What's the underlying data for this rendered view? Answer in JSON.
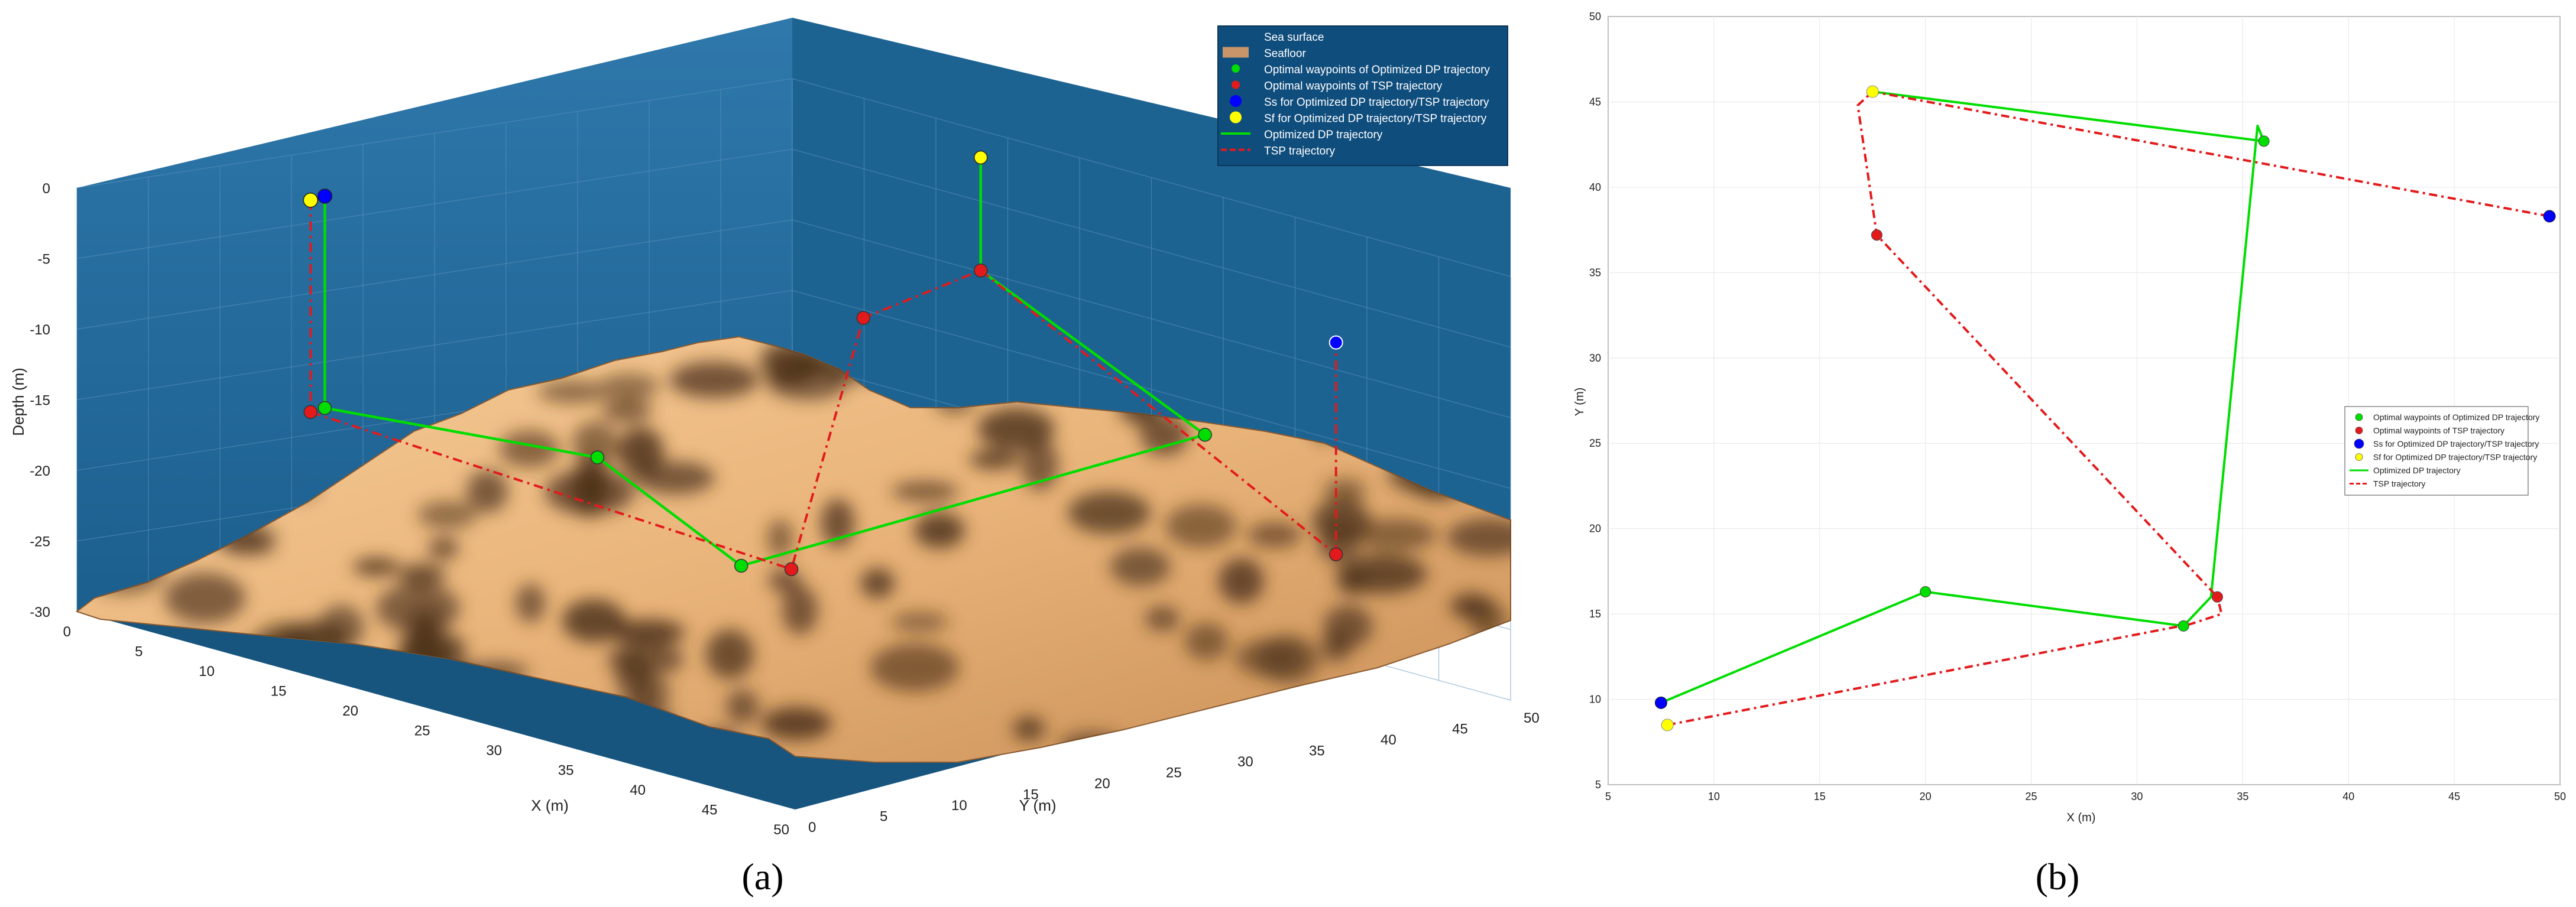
{
  "panel_a": {
    "caption": "(a)",
    "z_ticks": [
      "0",
      "-5",
      "-10",
      "-15",
      "-20",
      "-25",
      "-30"
    ],
    "x_ticks": [
      "0",
      "5",
      "10",
      "15",
      "20",
      "25",
      "30",
      "35",
      "40",
      "45",
      "50"
    ],
    "y_ticks": [
      "0",
      "5",
      "10",
      "15",
      "20",
      "25",
      "30",
      "35",
      "40",
      "45",
      "50"
    ],
    "zlabel": "Depth (m)",
    "xlabel": "X (m)",
    "ylabel": "Y (m)",
    "colors": {
      "water": "#1b5f8e",
      "seafloor_light": "#f2c28c",
      "seafloor_dark": "#5b3d22",
      "legend_bg": "#0f4d7d"
    },
    "legend": [
      {
        "icon": "none",
        "label": "Sea surface"
      },
      {
        "icon": "tan-rect",
        "label": "Seafloor"
      },
      {
        "icon": "green-dot",
        "label": "Optimal waypoints of Optimized DP trajectory"
      },
      {
        "icon": "red-dot",
        "label": "Optimal waypoints of TSP trajectory"
      },
      {
        "icon": "blue-dot",
        "label": "Ss for Optimized DP trajectory/TSP trajectory"
      },
      {
        "icon": "yellow-dot",
        "label": "Sf for Optimized DP trajectory/TSP trajectory"
      },
      {
        "icon": "green-line",
        "label": "Optimized DP trajectory"
      },
      {
        "icon": "red-dashed-line",
        "label": "TSP trajectory"
      }
    ]
  },
  "panel_b": {
    "caption": "(b)",
    "x_ticks": [
      "5",
      "10",
      "15",
      "20",
      "25",
      "30",
      "35",
      "40",
      "45",
      "50"
    ],
    "y_ticks": [
      "5",
      "10",
      "15",
      "20",
      "25",
      "30",
      "35",
      "40",
      "45",
      "50"
    ],
    "xlabel": "X (m)",
    "ylabel": "Y (m)",
    "legend": [
      {
        "icon": "green-dot",
        "label": "Optimal waypoints of Optimized DP trajectory"
      },
      {
        "icon": "red-dot",
        "label": "Optimal waypoints of TSP trajectory"
      },
      {
        "icon": "blue-dot",
        "label": "Ss for Optimized DP trajectory/TSP trajectory"
      },
      {
        "icon": "yellow-dot",
        "label": "Sf for Optimized DP trajectory/TSP trajectory"
      },
      {
        "icon": "green-line",
        "label": "Optimized DP trajectory"
      },
      {
        "icon": "red-dashed-line",
        "label": "TSP trajectory"
      }
    ]
  },
  "chart_data": [
    {
      "type": "line",
      "panel": "a",
      "projection": "3d",
      "xlim": [
        0,
        50
      ],
      "ylim": [
        0,
        50
      ],
      "zlim": [
        -30,
        0
      ],
      "series": [
        {
          "name": "Optimized DP trajectory",
          "color": "#00dd00",
          "style": "solid",
          "points": [
            [
              7.5,
              9.8,
              0
            ],
            [
              7.5,
              9.8,
              -15
            ],
            [
              20,
              16.3,
              -16
            ],
            [
              32,
              14.3,
              -20
            ],
            [
              36,
              42.7,
              -14
            ],
            [
              17.5,
              45.6,
              -8
            ],
            [
              17.5,
              45.6,
              0
            ]
          ]
        },
        {
          "name": "TSP trajectory",
          "color": "#e31a1c",
          "style": "dashed",
          "points": [
            [
              7.8,
              8.5,
              0
            ],
            [
              7.8,
              8.5,
              -15
            ],
            [
              33.8,
              16,
              -20
            ],
            [
              17.7,
              37.2,
              -10
            ],
            [
              17.5,
              45.6,
              -8
            ],
            [
              49.5,
              38.3,
              -18
            ],
            [
              49.5,
              38.3,
              -3
            ]
          ]
        }
      ],
      "markers": {
        "Ss": {
          "color": "#0000ff",
          "xyz": [
            7.5,
            9.8,
            0
          ]
        },
        "Sf": {
          "color": "#ffff00",
          "xyz": [
            7.8,
            8.5,
            0
          ]
        }
      }
    },
    {
      "type": "line",
      "panel": "b",
      "xlim": [
        5,
        50
      ],
      "ylim": [
        5,
        50
      ],
      "series": [
        {
          "name": "Optimized DP trajectory",
          "color": "#00dd00",
          "style": "solid",
          "x": [
            7.5,
            20,
            32.2,
            33.5,
            35.7,
            36,
            17.5
          ],
          "y": [
            9.8,
            16.3,
            14.3,
            16,
            43.6,
            42.7,
            45.6
          ]
        },
        {
          "name": "TSP trajectory",
          "color": "#e31a1c",
          "style": "dashed",
          "x": [
            7.8,
            32.5,
            34,
            33.8,
            17.7,
            16.8,
            17.5,
            49.5
          ],
          "y": [
            8.5,
            14.4,
            15,
            16,
            37.2,
            44.8,
            45.6,
            38.3
          ]
        }
      ],
      "waypoints": {
        "optimized_dp": {
          "x": [
            20,
            32.2,
            36
          ],
          "y": [
            16.3,
            14.3,
            42.7
          ],
          "color": "#00dd00"
        },
        "tsp": {
          "x": [
            33.8,
            17.7
          ],
          "y": [
            16,
            37.2
          ],
          "color": "#e31a1c"
        },
        "Ss": [
          {
            "x": 7.5,
            "y": 9.8,
            "color": "#0000ff"
          },
          {
            "x": 49.5,
            "y": 38.3,
            "color": "#0000ff"
          }
        ],
        "Sf": [
          {
            "x": 7.8,
            "y": 8.5,
            "color": "#ffff00"
          },
          {
            "x": 17.5,
            "y": 45.6,
            "color": "#ffff00"
          }
        ]
      }
    }
  ]
}
